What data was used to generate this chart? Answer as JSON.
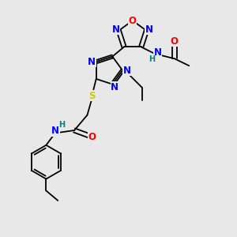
{
  "bg_color": "#e8e8e8",
  "atom_colors": {
    "N": "#0000ff",
    "O": "#ff0000",
    "S": "#cccc00",
    "H": "#008080"
  },
  "bond_color": "#000000",
  "lw": 1.3,
  "fs": 8.5
}
